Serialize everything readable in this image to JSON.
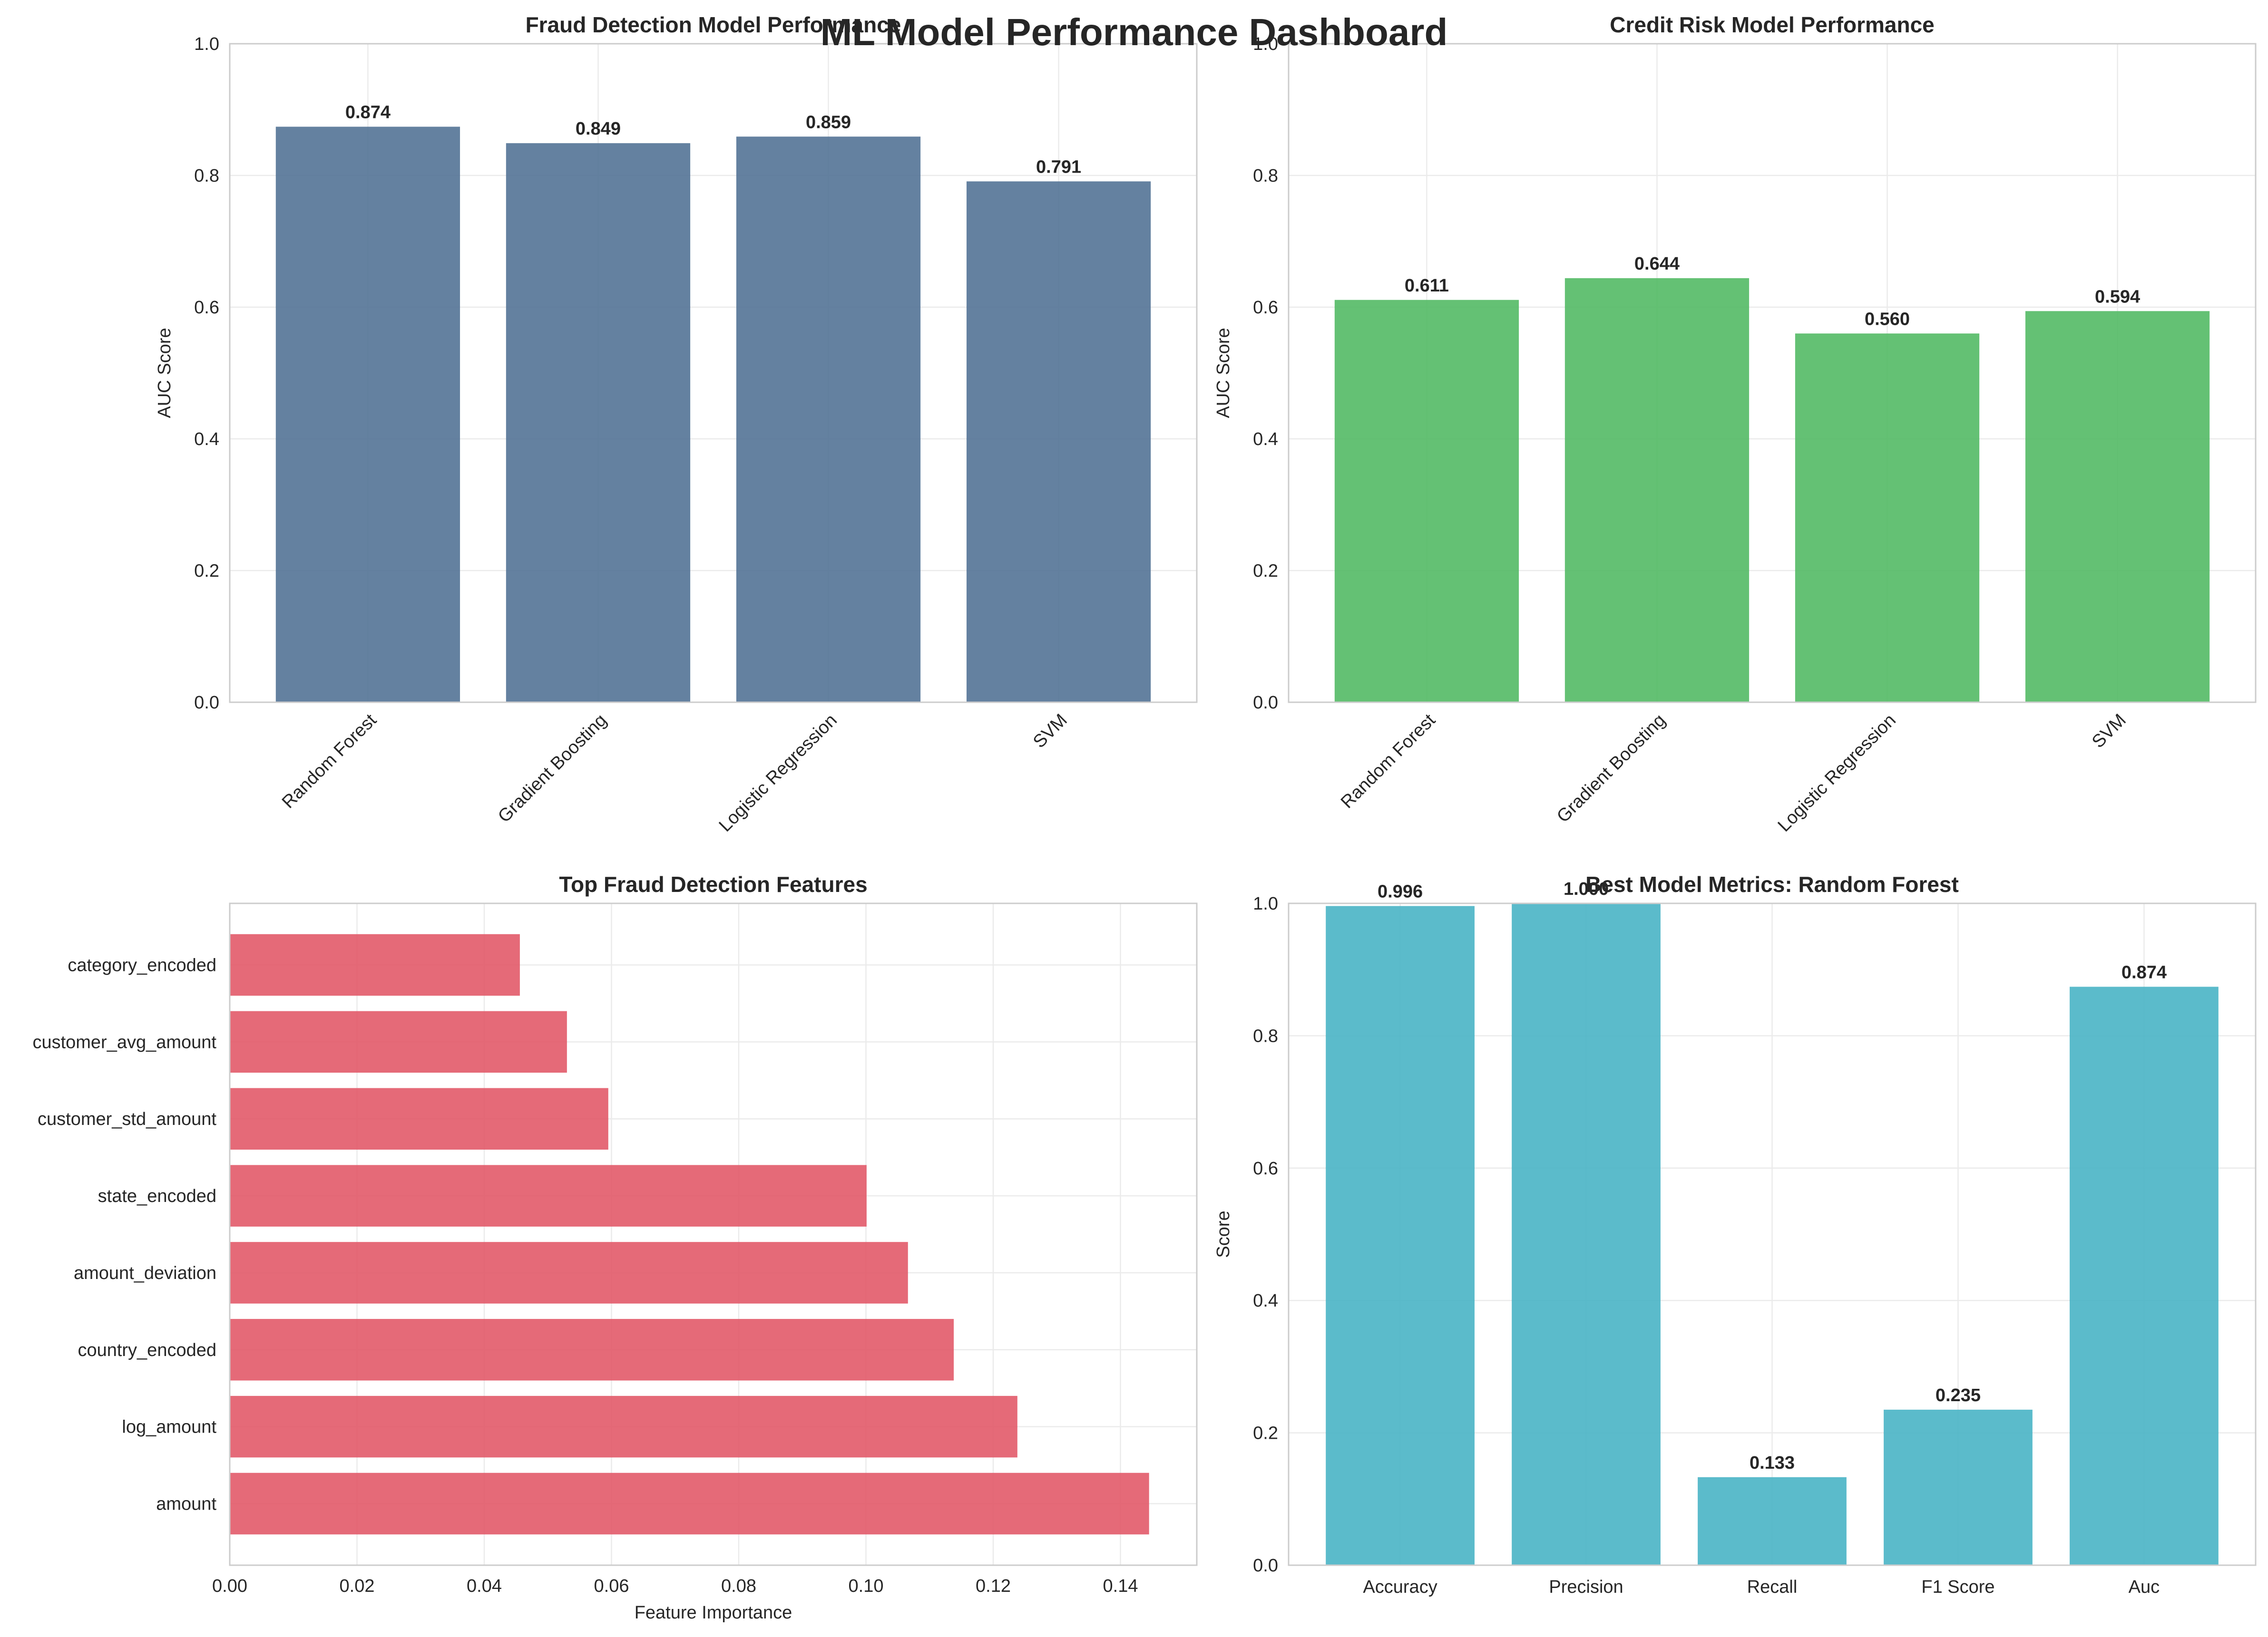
{
  "dashboard": {
    "title": "ML Model Performance Dashboard"
  },
  "colors": {
    "fraud": "#4e7093",
    "credit": "#4fb861",
    "features": "#e15565",
    "metrics": "#44b2c4"
  },
  "chart_data": [
    {
      "id": "fraud",
      "type": "bar",
      "title": "Fraud Detection Model Performance",
      "xlabel": "",
      "ylabel": "AUC Score",
      "categories": [
        "Random Forest",
        "Gradient Boosting",
        "Logistic Regression",
        "SVM"
      ],
      "values": [
        0.874,
        0.849,
        0.859,
        0.791
      ],
      "value_labels": [
        "0.874",
        "0.849",
        "0.859",
        "0.791"
      ],
      "ylim": [
        0,
        1
      ],
      "yticks": [
        "0.0",
        "0.2",
        "0.4",
        "0.6",
        "0.8",
        "1.0"
      ],
      "grid": true,
      "rotate_xticks": true
    },
    {
      "id": "credit",
      "type": "bar",
      "title": "Credit Risk Model Performance",
      "xlabel": "",
      "ylabel": "AUC Score",
      "categories": [
        "Random Forest",
        "Gradient Boosting",
        "Logistic Regression",
        "SVM"
      ],
      "values": [
        0.611,
        0.644,
        0.56,
        0.594
      ],
      "value_labels": [
        "0.611",
        "0.644",
        "0.560",
        "0.594"
      ],
      "ylim": [
        0,
        1
      ],
      "yticks": [
        "0.0",
        "0.2",
        "0.4",
        "0.6",
        "0.8",
        "1.0"
      ],
      "grid": true,
      "rotate_xticks": true
    },
    {
      "id": "features",
      "type": "bar",
      "orientation": "horizontal",
      "title": "Top Fraud Detection Features",
      "xlabel": "Feature Importance",
      "ylabel": "",
      "categories": [
        "amount",
        "log_amount",
        "country_encoded",
        "amount_deviation",
        "state_encoded",
        "customer_std_amount",
        "customer_avg_amount",
        "category_encoded"
      ],
      "values": [
        0.1445,
        0.1238,
        0.1138,
        0.1066,
        0.1001,
        0.0595,
        0.053,
        0.0456
      ],
      "xlim": [
        0,
        0.152
      ],
      "xticks": [
        "0.00",
        "0.02",
        "0.04",
        "0.06",
        "0.08",
        "0.10",
        "0.12",
        "0.14"
      ],
      "grid": true
    },
    {
      "id": "metrics",
      "type": "bar",
      "title": "Best Model Metrics: Random Forest",
      "xlabel": "",
      "ylabel": "Score",
      "categories": [
        "Accuracy",
        "Precision",
        "Recall",
        "F1 Score",
        "Auc"
      ],
      "values": [
        0.996,
        1.0,
        0.133,
        0.235,
        0.874
      ],
      "value_labels": [
        "0.996",
        "1.000",
        "0.133",
        "0.235",
        "0.874"
      ],
      "ylim": [
        0,
        1
      ],
      "yticks": [
        "0.0",
        "0.2",
        "0.4",
        "0.6",
        "0.8",
        "1.0"
      ],
      "grid": true,
      "rotate_xticks": false
    }
  ]
}
